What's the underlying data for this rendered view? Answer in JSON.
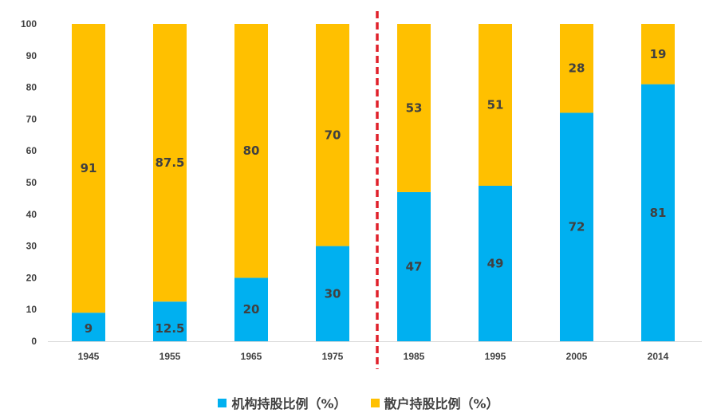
{
  "chart_data": {
    "type": "bar",
    "stacked": true,
    "categories": [
      "1945",
      "1955",
      "1965",
      "1975",
      "1985",
      "1995",
      "2005",
      "2014"
    ],
    "series": [
      {
        "name": "机构持股比例（%）",
        "values": [
          9,
          12.5,
          20,
          30,
          47,
          49,
          72,
          81
        ],
        "color": "#00b0f0"
      },
      {
        "name": "散户持股比例（%）",
        "values": [
          91,
          87.5,
          80,
          70,
          53,
          51,
          28,
          19
        ],
        "color": "#ffc000"
      }
    ],
    "data_labels": [
      [
        "9",
        "12.5",
        "20",
        "30",
        "47",
        "49",
        "72",
        "81"
      ],
      [
        "91",
        "87.5",
        "80",
        "70",
        "53",
        "51",
        "28",
        "19"
      ]
    ],
    "y_ticks": [
      "0",
      "10",
      "20",
      "30",
      "40",
      "50",
      "60",
      "70",
      "80",
      "90",
      "100"
    ],
    "ylim": [
      0,
      100
    ],
    "grid": false,
    "legend_position": "bottom",
    "divider": {
      "between": [
        "1975",
        "1985"
      ],
      "style": "dashed",
      "color": "#e0202a"
    }
  }
}
